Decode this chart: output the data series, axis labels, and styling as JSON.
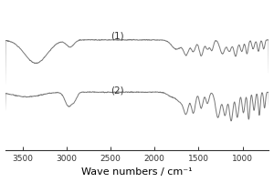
{
  "title": "",
  "xlabel": "Wave numbers / cm⁻¹",
  "xlabel_fontsize": 8,
  "xlim": [
    3700,
    700
  ],
  "label_1": "(1)",
  "label_2": "(2)",
  "xticks": [
    3500,
    3000,
    2500,
    2000,
    1500,
    1000
  ],
  "line_color": "#777777",
  "bg_color": "#ffffff",
  "fig_color": "#ffffff"
}
